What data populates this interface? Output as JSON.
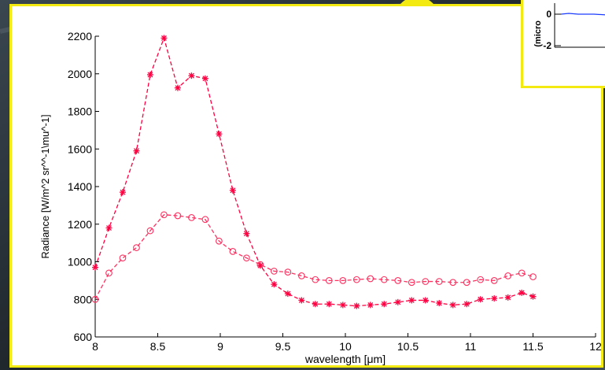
{
  "inset": {
    "ylabel_fragment": "(micro",
    "tick_labels": [
      "0",
      "-2"
    ]
  },
  "chart_data": {
    "type": "line",
    "title": "",
    "xlabel": "wavelength [μm]",
    "ylabel": "Radiance [W/m^2 sr^^-1\\mu^-1]",
    "xlim": [
      8,
      12
    ],
    "ylim": [
      600,
      2200
    ],
    "xticks": [
      8,
      8.5,
      9,
      9.5,
      10,
      10.5,
      11,
      11.5,
      12
    ],
    "xtick_labels": [
      "8",
      "8.5",
      "9",
      "9.5",
      "10",
      "10.5",
      "11",
      "11.5",
      "12"
    ],
    "yticks": [
      600,
      800,
      1000,
      1200,
      1400,
      1600,
      1800,
      2000,
      2200
    ],
    "ytick_labels": [
      "600",
      "800",
      "1000",
      "1200",
      "1400",
      "1600",
      "1800",
      "2000",
      "2200"
    ],
    "grid": false,
    "legend": "none",
    "x": [
      8.0,
      8.11,
      8.22,
      8.33,
      8.44,
      8.55,
      8.66,
      8.77,
      8.88,
      8.99,
      9.1,
      9.21,
      9.32,
      9.43,
      9.54,
      9.65,
      9.76,
      9.87,
      9.98,
      10.09,
      10.2,
      10.31,
      10.42,
      10.53,
      10.64,
      10.75,
      10.86,
      10.97,
      11.08,
      11.19,
      11.3,
      11.41,
      11.5
    ],
    "series": [
      {
        "name": "",
        "marker": "star",
        "color": "#ff0040",
        "values": [
          970,
          1180,
          1370,
          1590,
          1995,
          2190,
          1925,
          1990,
          1975,
          1680,
          1380,
          1150,
          980,
          880,
          830,
          795,
          775,
          775,
          770,
          765,
          770,
          775,
          785,
          795,
          795,
          780,
          770,
          775,
          800,
          805,
          810,
          835,
          815
        ]
      },
      {
        "name": "",
        "marker": "circle",
        "color": "#ff3060",
        "values": [
          800,
          940,
          1020,
          1075,
          1165,
          1250,
          1245,
          1235,
          1225,
          1110,
          1055,
          1020,
          985,
          950,
          945,
          925,
          905,
          900,
          900,
          905,
          910,
          905,
          900,
          890,
          895,
          895,
          890,
          890,
          905,
          900,
          925,
          940,
          920
        ]
      }
    ]
  }
}
